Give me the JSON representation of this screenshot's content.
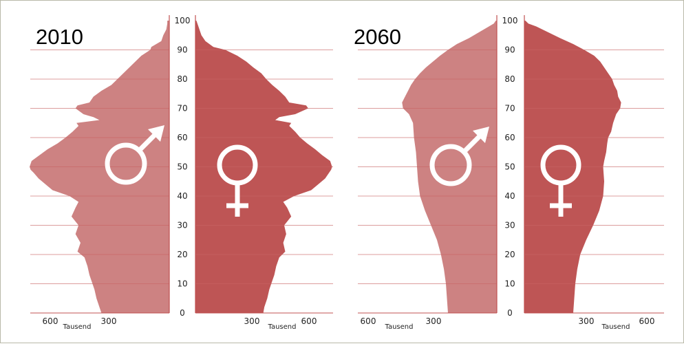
{
  "chart_data": [
    {
      "type": "population-pyramid",
      "title": "2010",
      "x_unit_label": "Tausend",
      "x_tick_labels": [
        "600",
        "300",
        "300",
        "600"
      ],
      "age_ticks": [
        "0",
        "10",
        "20",
        "30",
        "40",
        "50",
        "60",
        "70",
        "80",
        "90",
        "100"
      ],
      "colors": {
        "male": "#cd8282",
        "female": "#be5555",
        "axis": "#c05050",
        "grid": "#c86464"
      },
      "series": [
        {
          "name": "male-symbol",
          "points": [
            [
              0,
              340
            ],
            [
              2,
              350
            ],
            [
              5,
              365
            ],
            [
              8,
              375
            ],
            [
              10,
              385
            ],
            [
              13,
              400
            ],
            [
              16,
              410
            ],
            [
              19,
              425
            ],
            [
              21,
              460
            ],
            [
              24,
              445
            ],
            [
              27,
              470
            ],
            [
              30,
              455
            ],
            [
              33,
              490
            ],
            [
              36,
              470
            ],
            [
              38,
              455
            ],
            [
              40,
              500
            ],
            [
              42,
              585
            ],
            [
              44,
              620
            ],
            [
              46,
              655
            ],
            [
              48,
              680
            ],
            [
              49,
              695
            ],
            [
              50,
              700
            ],
            [
              52,
              690
            ],
            [
              54,
              650
            ],
            [
              56,
              610
            ],
            [
              58,
              560
            ],
            [
              60,
              520
            ],
            [
              62,
              485
            ],
            [
              64,
              455
            ],
            [
              65,
              465
            ],
            [
              66,
              350
            ],
            [
              67,
              380
            ],
            [
              68,
              430
            ],
            [
              70,
              470
            ],
            [
              71,
              460
            ],
            [
              72,
              400
            ],
            [
              74,
              380
            ],
            [
              76,
              340
            ],
            [
              78,
              290
            ],
            [
              80,
              260
            ],
            [
              82,
              230
            ],
            [
              84,
              200
            ],
            [
              86,
              170
            ],
            [
              88,
              140
            ],
            [
              90,
              95
            ],
            [
              91,
              90
            ],
            [
              93,
              40
            ],
            [
              95,
              30
            ],
            [
              97,
              15
            ],
            [
              99,
              10
            ],
            [
              100,
              10
            ]
          ]
        },
        {
          "name": "female-symbol",
          "points": [
            [
              0,
              340
            ],
            [
              2,
              345
            ],
            [
              5,
              360
            ],
            [
              8,
              370
            ],
            [
              10,
              380
            ],
            [
              13,
              395
            ],
            [
              16,
              405
            ],
            [
              19,
              420
            ],
            [
              21,
              450
            ],
            [
              24,
              440
            ],
            [
              27,
              455
            ],
            [
              30,
              445
            ],
            [
              33,
              480
            ],
            [
              36,
              460
            ],
            [
              38,
              440
            ],
            [
              40,
              495
            ],
            [
              42,
              580
            ],
            [
              44,
              615
            ],
            [
              46,
              650
            ],
            [
              48,
              670
            ],
            [
              49,
              680
            ],
            [
              50,
              685
            ],
            [
              52,
              675
            ],
            [
              54,
              635
            ],
            [
              56,
              600
            ],
            [
              58,
              560
            ],
            [
              60,
              525
            ],
            [
              62,
              500
            ],
            [
              64,
              470
            ],
            [
              65,
              480
            ],
            [
              66,
              400
            ],
            [
              67,
              420
            ],
            [
              68,
              500
            ],
            [
              70,
              565
            ],
            [
              71,
              555
            ],
            [
              72,
              470
            ],
            [
              74,
              450
            ],
            [
              76,
              420
            ],
            [
              78,
              385
            ],
            [
              80,
              355
            ],
            [
              82,
              330
            ],
            [
              84,
              290
            ],
            [
              86,
              255
            ],
            [
              88,
              210
            ],
            [
              90,
              150
            ],
            [
              91,
              90
            ],
            [
              93,
              50
            ],
            [
              95,
              30
            ],
            [
              97,
              20
            ],
            [
              99,
              10
            ],
            [
              100,
              5
            ]
          ]
        }
      ]
    },
    {
      "type": "population-pyramid",
      "title": "2060",
      "x_unit_label": "Tausend",
      "x_tick_labels": [
        "600",
        "300",
        "300",
        "600"
      ],
      "age_ticks": [
        "0",
        "10",
        "20",
        "30",
        "40",
        "50",
        "60",
        "70",
        "80",
        "90",
        "100"
      ],
      "colors": {
        "male": "#cd8282",
        "female": "#be5555",
        "axis": "#c05050",
        "grid": "#c86464"
      },
      "series": [
        {
          "name": "male-symbol",
          "points": [
            [
              0,
              245
            ],
            [
              5,
              250
            ],
            [
              10,
              255
            ],
            [
              15,
              265
            ],
            [
              20,
              280
            ],
            [
              25,
              300
            ],
            [
              30,
              330
            ],
            [
              35,
              360
            ],
            [
              40,
              385
            ],
            [
              45,
              395
            ],
            [
              50,
              400
            ],
            [
              55,
              405
            ],
            [
              60,
              415
            ],
            [
              65,
              420
            ],
            [
              68,
              440
            ],
            [
              70,
              470
            ],
            [
              72,
              475
            ],
            [
              74,
              460
            ],
            [
              76,
              445
            ],
            [
              78,
              430
            ],
            [
              80,
              410
            ],
            [
              82,
              385
            ],
            [
              84,
              355
            ],
            [
              86,
              320
            ],
            [
              88,
              285
            ],
            [
              90,
              245
            ],
            [
              92,
              200
            ],
            [
              94,
              140
            ],
            [
              96,
              90
            ],
            [
              98,
              40
            ],
            [
              99,
              15
            ],
            [
              100,
              5
            ]
          ]
        },
        {
          "name": "female-symbol",
          "points": [
            [
              0,
              245
            ],
            [
              5,
              250
            ],
            [
              10,
              255
            ],
            [
              15,
              265
            ],
            [
              20,
              280
            ],
            [
              25,
              310
            ],
            [
              30,
              345
            ],
            [
              35,
              375
            ],
            [
              40,
              395
            ],
            [
              45,
              400
            ],
            [
              50,
              395
            ],
            [
              52,
              400
            ],
            [
              55,
              410
            ],
            [
              58,
              415
            ],
            [
              60,
              420
            ],
            [
              62,
              435
            ],
            [
              65,
              445
            ],
            [
              68,
              460
            ],
            [
              70,
              480
            ],
            [
              72,
              485
            ],
            [
              74,
              470
            ],
            [
              76,
              465
            ],
            [
              78,
              450
            ],
            [
              80,
              440
            ],
            [
              82,
              420
            ],
            [
              84,
              400
            ],
            [
              86,
              380
            ],
            [
              88,
              350
            ],
            [
              90,
              300
            ],
            [
              92,
              245
            ],
            [
              94,
              180
            ],
            [
              96,
              120
            ],
            [
              98,
              60
            ],
            [
              99,
              20
            ],
            [
              100,
              5
            ]
          ]
        }
      ]
    }
  ]
}
